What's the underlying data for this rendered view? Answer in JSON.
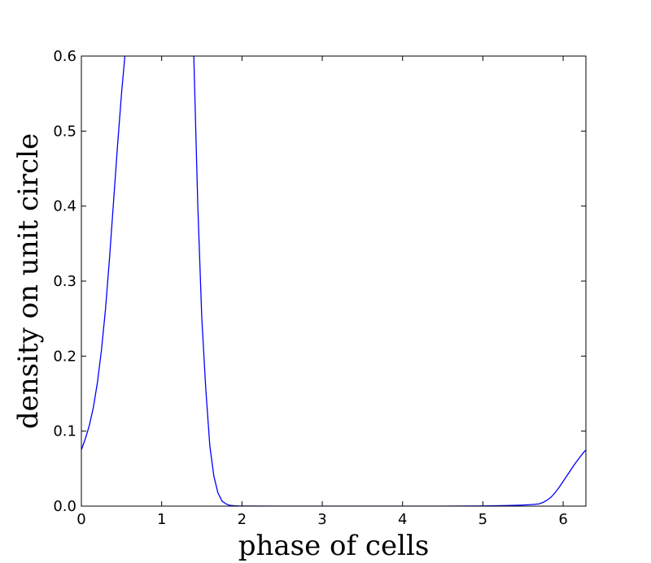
{
  "chart_data": {
    "type": "line",
    "title": "",
    "xlabel": "phase of cells",
    "ylabel": "density on unit circle",
    "xlim": [
      0,
      6.2832
    ],
    "ylim": [
      0,
      0.6
    ],
    "xticks": [
      0,
      1,
      2,
      3,
      4,
      5,
      6
    ],
    "yticks": [
      0.0,
      0.1,
      0.2,
      0.3,
      0.4,
      0.5,
      0.6
    ],
    "ytick_labels": [
      "0.0",
      "0.1",
      "0.2",
      "0.3",
      "0.4",
      "0.5",
      "0.6"
    ],
    "grid": false,
    "legend": "none",
    "series": [
      {
        "color": "#0000ff",
        "x": [
          0.0,
          0.05,
          0.1,
          0.15,
          0.2,
          0.25,
          0.3,
          0.35,
          0.4,
          0.45,
          0.5,
          0.55,
          0.6,
          0.65,
          0.7,
          1.35,
          1.4,
          1.45,
          1.5,
          1.55,
          1.6,
          1.65,
          1.7,
          1.75,
          1.8,
          1.85,
          1.9,
          1.95,
          2.0,
          2.5,
          3.0,
          3.5,
          4.0,
          4.5,
          5.0,
          5.3,
          5.5,
          5.6,
          5.7,
          5.75,
          5.8,
          5.85,
          5.9,
          5.95,
          6.0,
          6.05,
          6.1,
          6.15,
          6.2,
          6.25,
          6.2832
        ],
        "y": [
          0.075,
          0.09,
          0.108,
          0.132,
          0.165,
          0.208,
          0.262,
          0.33,
          0.405,
          0.48,
          0.55,
          0.61,
          0.64,
          0.65,
          0.65,
          0.65,
          0.6,
          0.4,
          0.25,
          0.155,
          0.08,
          0.04,
          0.018,
          0.007,
          0.003,
          0.001,
          0.0005,
          0.0002,
          0.0001,
          0.0,
          0.0,
          0.0,
          0.0,
          0.0,
          0.0003,
          0.0008,
          0.0015,
          0.002,
          0.003,
          0.005,
          0.008,
          0.012,
          0.018,
          0.025,
          0.033,
          0.041,
          0.049,
          0.057,
          0.064,
          0.071,
          0.075
        ]
      }
    ]
  }
}
